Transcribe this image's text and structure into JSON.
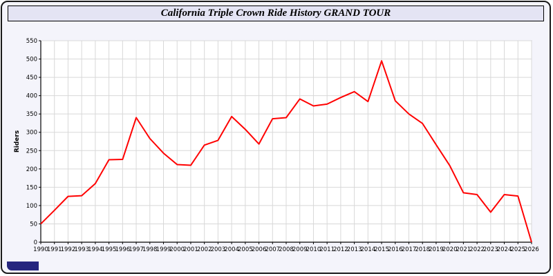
{
  "title": "California Triple Crown Ride History GRAND TOUR",
  "colors": {
    "line": "#ff0000",
    "frame_bg": "#f4f4fb",
    "title_bg": "#e4e4f4",
    "plot_bg": "#ffffff",
    "grid": "#d8d8d8",
    "axis": "#000000",
    "footer_badge": "#26267e"
  },
  "chart_data": {
    "type": "line",
    "title": "California Triple Crown Ride History GRAND TOUR",
    "xlabel": "",
    "ylabel": "Riders",
    "ylim": [
      0,
      550
    ],
    "ytick_step": 50,
    "grid": true,
    "legend": "none",
    "x": [
      1990,
      1991,
      1992,
      1993,
      1994,
      1995,
      1996,
      1997,
      1998,
      1999,
      2000,
      2001,
      2002,
      2003,
      2004,
      2005,
      2006,
      2007,
      2008,
      2009,
      2010,
      2011,
      2012,
      2013,
      2014,
      2015,
      2016,
      2017,
      2018,
      2019,
      2020,
      2021,
      2022,
      2023,
      2024,
      2025,
      2026
    ],
    "series": [
      {
        "name": "Riders",
        "color": "#ff0000",
        "values": [
          50,
          87,
          125,
          127,
          160,
          225,
          226,
          340,
          283,
          243,
          212,
          210,
          265,
          278,
          343,
          308,
          268,
          337,
          340,
          391,
          372,
          377,
          395,
          411,
          384,
          495,
          386,
          350,
          324,
          266,
          209,
          135,
          130,
          82,
          130,
          126,
          0
        ]
      }
    ]
  }
}
